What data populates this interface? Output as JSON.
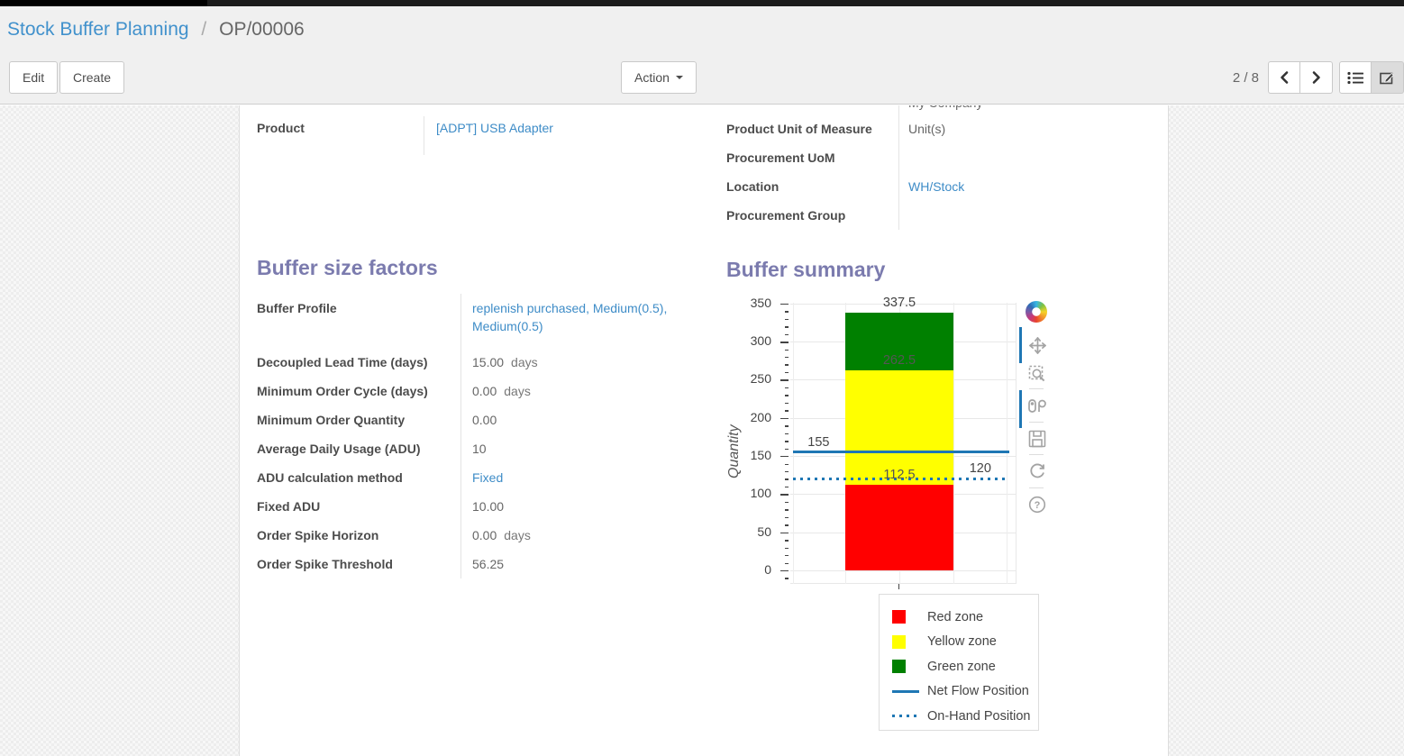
{
  "breadcrumb": {
    "section": "Stock Buffer Planning",
    "separator": "/",
    "record": "OP/00006"
  },
  "toolbar": {
    "edit_label": "Edit",
    "create_label": "Create",
    "action_label": "Action",
    "pager": "2 / 8"
  },
  "form": {
    "clipped_value": "My Company",
    "product": {
      "label": "Product",
      "value": "[ADPT] USB Adapter"
    },
    "uom": {
      "label": "Product Unit of Measure",
      "value": "Unit(s)"
    },
    "procurement_uom": {
      "label": "Procurement UoM",
      "value": ""
    },
    "location": {
      "label": "Location",
      "value": "WH/Stock"
    },
    "procurement_group": {
      "label": "Procurement Group",
      "value": ""
    }
  },
  "factors": {
    "title": "Buffer size factors",
    "rows": [
      {
        "label": "Buffer Profile",
        "value": "replenish purchased, Medium(0.5), Medium(0.5)",
        "link": true
      },
      {
        "label": "Decoupled Lead Time (days)",
        "value": "15.00",
        "suffix": "days"
      },
      {
        "label": "Minimum Order Cycle (days)",
        "value": "0.00",
        "suffix": "days"
      },
      {
        "label": "Minimum Order Quantity",
        "value": "0.00"
      },
      {
        "label": "Average Daily Usage (ADU)",
        "value": "10"
      },
      {
        "label": "ADU calculation method",
        "value": "Fixed",
        "link": true
      },
      {
        "label": "Fixed ADU",
        "value": "10.00"
      },
      {
        "label": "Order Spike Horizon",
        "value": "0.00",
        "suffix": "days"
      },
      {
        "label": "Order Spike Threshold",
        "value": "56.25"
      }
    ]
  },
  "summary": {
    "title": "Buffer summary"
  },
  "chart_data": {
    "type": "bar",
    "title": "Buffer summary",
    "ylabel": "Quantity",
    "ylim": [
      0,
      350
    ],
    "yticks": [
      0,
      50,
      100,
      150,
      200,
      250,
      300,
      350
    ],
    "grid": true,
    "legend_position": "bottom-right",
    "zones": [
      {
        "name": "Red zone",
        "color": "#ff0000",
        "from": 0,
        "to": 112.5
      },
      {
        "name": "Yellow zone",
        "color": "#ffff00",
        "from": 112.5,
        "to": 262.5
      },
      {
        "name": "Green zone",
        "color": "#008000",
        "from": 262.5,
        "to": 337.5
      }
    ],
    "lines": [
      {
        "name": "Net Flow Position",
        "style": "solid",
        "color": "#1f77b4",
        "value": 155
      },
      {
        "name": "On-Hand Position",
        "style": "dotted",
        "color": "#1f77b4",
        "value": 120
      }
    ],
    "annotations": [
      {
        "text": "337.5",
        "value": 337.5,
        "xf": 0.482,
        "color": "#444444"
      },
      {
        "text": "262.5",
        "value": 262.5,
        "xf": 0.482,
        "color": "#555555"
      },
      {
        "text": "155",
        "value": 155,
        "xf": 0.125,
        "color": "#444444"
      },
      {
        "text": "112.5",
        "value": 112.5,
        "xf": 0.482,
        "color": "#555555"
      },
      {
        "text": "120",
        "value": 120,
        "xf": 0.84,
        "color": "#444444"
      }
    ],
    "legend": [
      "Red zone",
      "Yellow zone",
      "Green zone",
      "Net Flow Position",
      "On-Hand Position"
    ]
  }
}
